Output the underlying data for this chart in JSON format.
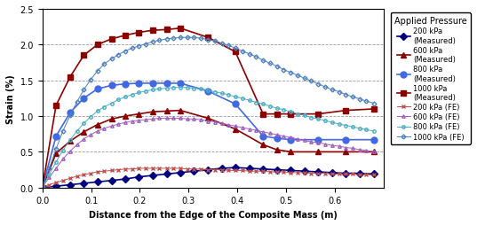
{
  "xlabel": "Distance from the Edge of the Composite Mass (m)",
  "ylabel": "Strain (%)",
  "legend_title": "Applied Pressure",
  "xlim": [
    0.0,
    0.7
  ],
  "ylim": [
    0.0,
    2.5
  ],
  "xticks": [
    0.0,
    0.1,
    0.2,
    0.3,
    0.4,
    0.5,
    0.6
  ],
  "yticks": [
    0.0,
    0.5,
    1.0,
    1.5,
    2.0,
    2.5
  ],
  "lines": {
    "m200": {
      "label": "200 kPa\n(Measured)",
      "color": "#000080",
      "marker": "D",
      "markersize": 4,
      "markerface": "#000080",
      "lw": 1.2,
      "x": [
        0.0,
        0.028,
        0.057,
        0.085,
        0.113,
        0.142,
        0.17,
        0.198,
        0.226,
        0.255,
        0.283,
        0.311,
        0.34,
        0.368,
        0.396,
        0.425,
        0.453,
        0.481,
        0.51,
        0.538,
        0.566,
        0.595,
        0.623,
        0.651,
        0.68
      ],
      "y": [
        0.0,
        0.02,
        0.04,
        0.06,
        0.08,
        0.1,
        0.12,
        0.15,
        0.17,
        0.19,
        0.21,
        0.23,
        0.25,
        0.27,
        0.28,
        0.27,
        0.26,
        0.25,
        0.24,
        0.23,
        0.22,
        0.21,
        0.2,
        0.2,
        0.19
      ]
    },
    "m600": {
      "label": "600 kPa\n(Measured)",
      "color": "#8B0000",
      "marker": "^",
      "markersize": 5,
      "markerface": "#8B0000",
      "lw": 1.2,
      "x": [
        0.0,
        0.028,
        0.057,
        0.085,
        0.113,
        0.142,
        0.17,
        0.198,
        0.226,
        0.255,
        0.283,
        0.34,
        0.396,
        0.453,
        0.481,
        0.51,
        0.566,
        0.623,
        0.68
      ],
      "y": [
        0.0,
        0.48,
        0.65,
        0.78,
        0.88,
        0.96,
        1.0,
        1.03,
        1.06,
        1.07,
        1.08,
        0.97,
        0.82,
        0.6,
        0.53,
        0.5,
        0.5,
        0.5,
        0.5
      ]
    },
    "m800": {
      "label": "800 kPa\n(Measured)",
      "color": "#4169E1",
      "marker": "o",
      "markersize": 5,
      "markerface": "#4169E1",
      "lw": 1.2,
      "x": [
        0.0,
        0.028,
        0.057,
        0.085,
        0.113,
        0.142,
        0.17,
        0.198,
        0.226,
        0.255,
        0.283,
        0.34,
        0.396,
        0.453,
        0.481,
        0.51,
        0.566,
        0.623,
        0.68
      ],
      "y": [
        0.0,
        0.72,
        1.05,
        1.25,
        1.38,
        1.43,
        1.45,
        1.46,
        1.46,
        1.46,
        1.46,
        1.35,
        1.17,
        0.72,
        0.69,
        0.67,
        0.67,
        0.67,
        0.67
      ]
    },
    "m1000": {
      "label": "1000 kPa\n(Measured)",
      "color": "#8B0000",
      "marker": "s",
      "markersize": 5,
      "markerface": "#8B0000",
      "lw": 1.2,
      "x": [
        0.0,
        0.028,
        0.057,
        0.085,
        0.113,
        0.142,
        0.17,
        0.198,
        0.226,
        0.255,
        0.283,
        0.34,
        0.396,
        0.453,
        0.481,
        0.51,
        0.566,
        0.623,
        0.68
      ],
      "y": [
        0.0,
        1.15,
        1.55,
        1.85,
        2.0,
        2.08,
        2.13,
        2.17,
        2.2,
        2.21,
        2.23,
        2.1,
        1.9,
        1.03,
        1.03,
        1.03,
        1.03,
        1.08,
        1.1
      ]
    },
    "fe200": {
      "label": "200 kPa (FE)",
      "color": "#C0504D",
      "marker": "x",
      "markersize": 2.5,
      "markerface": "none",
      "lw": 0.7,
      "x": [
        0.0,
        0.014,
        0.028,
        0.042,
        0.057,
        0.071,
        0.085,
        0.099,
        0.113,
        0.127,
        0.142,
        0.156,
        0.17,
        0.184,
        0.198,
        0.212,
        0.226,
        0.24,
        0.255,
        0.269,
        0.283,
        0.297,
        0.311,
        0.325,
        0.34,
        0.354,
        0.368,
        0.382,
        0.396,
        0.41,
        0.425,
        0.439,
        0.453,
        0.467,
        0.481,
        0.495,
        0.51,
        0.524,
        0.538,
        0.552,
        0.566,
        0.58,
        0.595,
        0.609,
        0.623,
        0.637,
        0.651,
        0.665,
        0.68
      ],
      "y": [
        0.01,
        0.04,
        0.07,
        0.1,
        0.13,
        0.16,
        0.18,
        0.2,
        0.22,
        0.23,
        0.24,
        0.25,
        0.26,
        0.26,
        0.27,
        0.27,
        0.27,
        0.27,
        0.27,
        0.27,
        0.27,
        0.26,
        0.26,
        0.26,
        0.25,
        0.25,
        0.25,
        0.24,
        0.24,
        0.24,
        0.23,
        0.23,
        0.23,
        0.22,
        0.22,
        0.22,
        0.21,
        0.21,
        0.21,
        0.2,
        0.2,
        0.2,
        0.19,
        0.19,
        0.19,
        0.19,
        0.18,
        0.18,
        0.18
      ]
    },
    "fe600": {
      "label": "600 kPa (FE)",
      "color": "#9E5FC1",
      "marker": "^",
      "markersize": 2.5,
      "markerface": "none",
      "lw": 0.7,
      "x": [
        0.0,
        0.014,
        0.028,
        0.042,
        0.057,
        0.071,
        0.085,
        0.099,
        0.113,
        0.127,
        0.142,
        0.156,
        0.17,
        0.184,
        0.198,
        0.212,
        0.226,
        0.24,
        0.255,
        0.269,
        0.283,
        0.297,
        0.311,
        0.325,
        0.34,
        0.354,
        0.368,
        0.382,
        0.396,
        0.41,
        0.425,
        0.439,
        0.453,
        0.467,
        0.481,
        0.495,
        0.51,
        0.524,
        0.538,
        0.552,
        0.566,
        0.58,
        0.595,
        0.609,
        0.623,
        0.637,
        0.651,
        0.665,
        0.68
      ],
      "y": [
        0.01,
        0.14,
        0.27,
        0.4,
        0.51,
        0.6,
        0.68,
        0.74,
        0.79,
        0.83,
        0.86,
        0.89,
        0.91,
        0.93,
        0.94,
        0.95,
        0.96,
        0.97,
        0.97,
        0.97,
        0.97,
        0.96,
        0.96,
        0.95,
        0.93,
        0.92,
        0.9,
        0.88,
        0.86,
        0.84,
        0.82,
        0.8,
        0.78,
        0.76,
        0.74,
        0.72,
        0.7,
        0.68,
        0.66,
        0.64,
        0.63,
        0.61,
        0.59,
        0.58,
        0.56,
        0.55,
        0.53,
        0.52,
        0.5
      ]
    },
    "fe800": {
      "label": "800 kPa (FE)",
      "color": "#4BACC6",
      "marker": "o",
      "markersize": 2.5,
      "markerface": "none",
      "lw": 0.7,
      "x": [
        0.0,
        0.014,
        0.028,
        0.042,
        0.057,
        0.071,
        0.085,
        0.099,
        0.113,
        0.127,
        0.142,
        0.156,
        0.17,
        0.184,
        0.198,
        0.212,
        0.226,
        0.24,
        0.255,
        0.269,
        0.283,
        0.297,
        0.311,
        0.325,
        0.34,
        0.354,
        0.368,
        0.382,
        0.396,
        0.41,
        0.425,
        0.439,
        0.453,
        0.467,
        0.481,
        0.495,
        0.51,
        0.524,
        0.538,
        0.552,
        0.566,
        0.58,
        0.595,
        0.609,
        0.623,
        0.637,
        0.651,
        0.665,
        0.68
      ],
      "y": [
        0.01,
        0.18,
        0.36,
        0.52,
        0.67,
        0.79,
        0.9,
        0.99,
        1.07,
        1.13,
        1.18,
        1.23,
        1.27,
        1.3,
        1.33,
        1.35,
        1.37,
        1.38,
        1.39,
        1.4,
        1.4,
        1.4,
        1.39,
        1.38,
        1.36,
        1.34,
        1.32,
        1.3,
        1.27,
        1.25,
        1.22,
        1.19,
        1.17,
        1.14,
        1.11,
        1.09,
        1.06,
        1.03,
        1.01,
        0.98,
        0.96,
        0.94,
        0.91,
        0.89,
        0.87,
        0.85,
        0.83,
        0.81,
        0.79
      ]
    },
    "fe1000": {
      "label": "1000 kPa (FE)",
      "color": "#4F81BD",
      "marker": "D",
      "markersize": 2.5,
      "markerface": "none",
      "lw": 0.7,
      "x": [
        0.0,
        0.014,
        0.028,
        0.042,
        0.057,
        0.071,
        0.085,
        0.099,
        0.113,
        0.127,
        0.142,
        0.156,
        0.17,
        0.184,
        0.198,
        0.212,
        0.226,
        0.24,
        0.255,
        0.269,
        0.283,
        0.297,
        0.311,
        0.325,
        0.34,
        0.354,
        0.368,
        0.382,
        0.396,
        0.41,
        0.425,
        0.439,
        0.453,
        0.467,
        0.481,
        0.495,
        0.51,
        0.524,
        0.538,
        0.552,
        0.566,
        0.58,
        0.595,
        0.609,
        0.623,
        0.637,
        0.651,
        0.665,
        0.68
      ],
      "y": [
        0.01,
        0.27,
        0.54,
        0.79,
        1.01,
        1.2,
        1.37,
        1.51,
        1.63,
        1.73,
        1.8,
        1.86,
        1.91,
        1.95,
        1.98,
        2.01,
        2.04,
        2.06,
        2.08,
        2.09,
        2.1,
        2.1,
        2.1,
        2.09,
        2.07,
        2.05,
        2.02,
        1.99,
        1.95,
        1.91,
        1.87,
        1.83,
        1.78,
        1.74,
        1.7,
        1.65,
        1.61,
        1.57,
        1.53,
        1.49,
        1.45,
        1.41,
        1.37,
        1.34,
        1.3,
        1.27,
        1.24,
        1.21,
        1.18
      ]
    }
  }
}
